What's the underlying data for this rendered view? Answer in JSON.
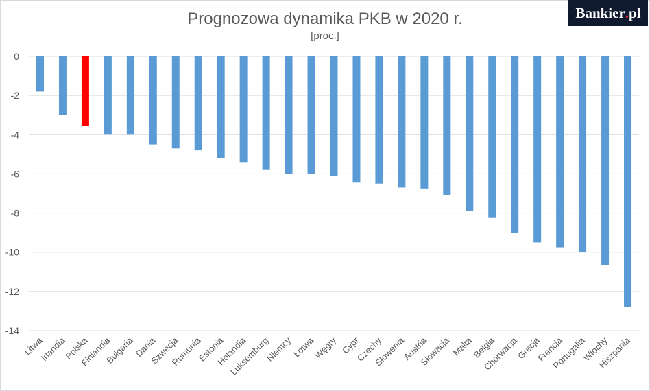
{
  "logo": {
    "text_main": "Bankier",
    "text_dot": ".",
    "text_tail": "pl"
  },
  "chart_data": {
    "type": "bar",
    "title": "Prognozowa dynamika PKB w 2020 r.",
    "subtitle": "[proc.]",
    "xlabel": "",
    "ylabel": "",
    "ylim": [
      -14,
      0
    ],
    "yticks": [
      0,
      -2,
      -4,
      -6,
      -8,
      -10,
      -12,
      -14
    ],
    "grid": true,
    "categories": [
      "Litwa",
      "Irlandia",
      "Polska",
      "Finlandia",
      "Bułgaria",
      "Dania",
      "Szwecja",
      "Rumunia",
      "Estonia",
      "Holandia",
      "Luksemburg",
      "Niemcy",
      "Łotwa",
      "Węgry",
      "Cypr",
      "Czechy",
      "Słowenia",
      "Austria",
      "Słowacja",
      "Malta",
      "Belgia",
      "Chorwacja",
      "Grecja",
      "Francja",
      "Portugalia",
      "Włochy",
      "Hiszpania"
    ],
    "values": [
      -1.8,
      -3.0,
      -3.55,
      -4.0,
      -4.0,
      -4.5,
      -4.7,
      -4.8,
      -5.2,
      -5.4,
      -5.8,
      -6.0,
      -6.0,
      -6.1,
      -6.45,
      -6.5,
      -6.7,
      -6.75,
      -7.1,
      -7.9,
      -8.25,
      -9.0,
      -9.5,
      -9.75,
      -10.0,
      -10.65,
      -12.8
    ],
    "colors": {
      "default": "#5b9bd5",
      "highlight": "#ff0000"
    },
    "highlight_index": 2
  }
}
